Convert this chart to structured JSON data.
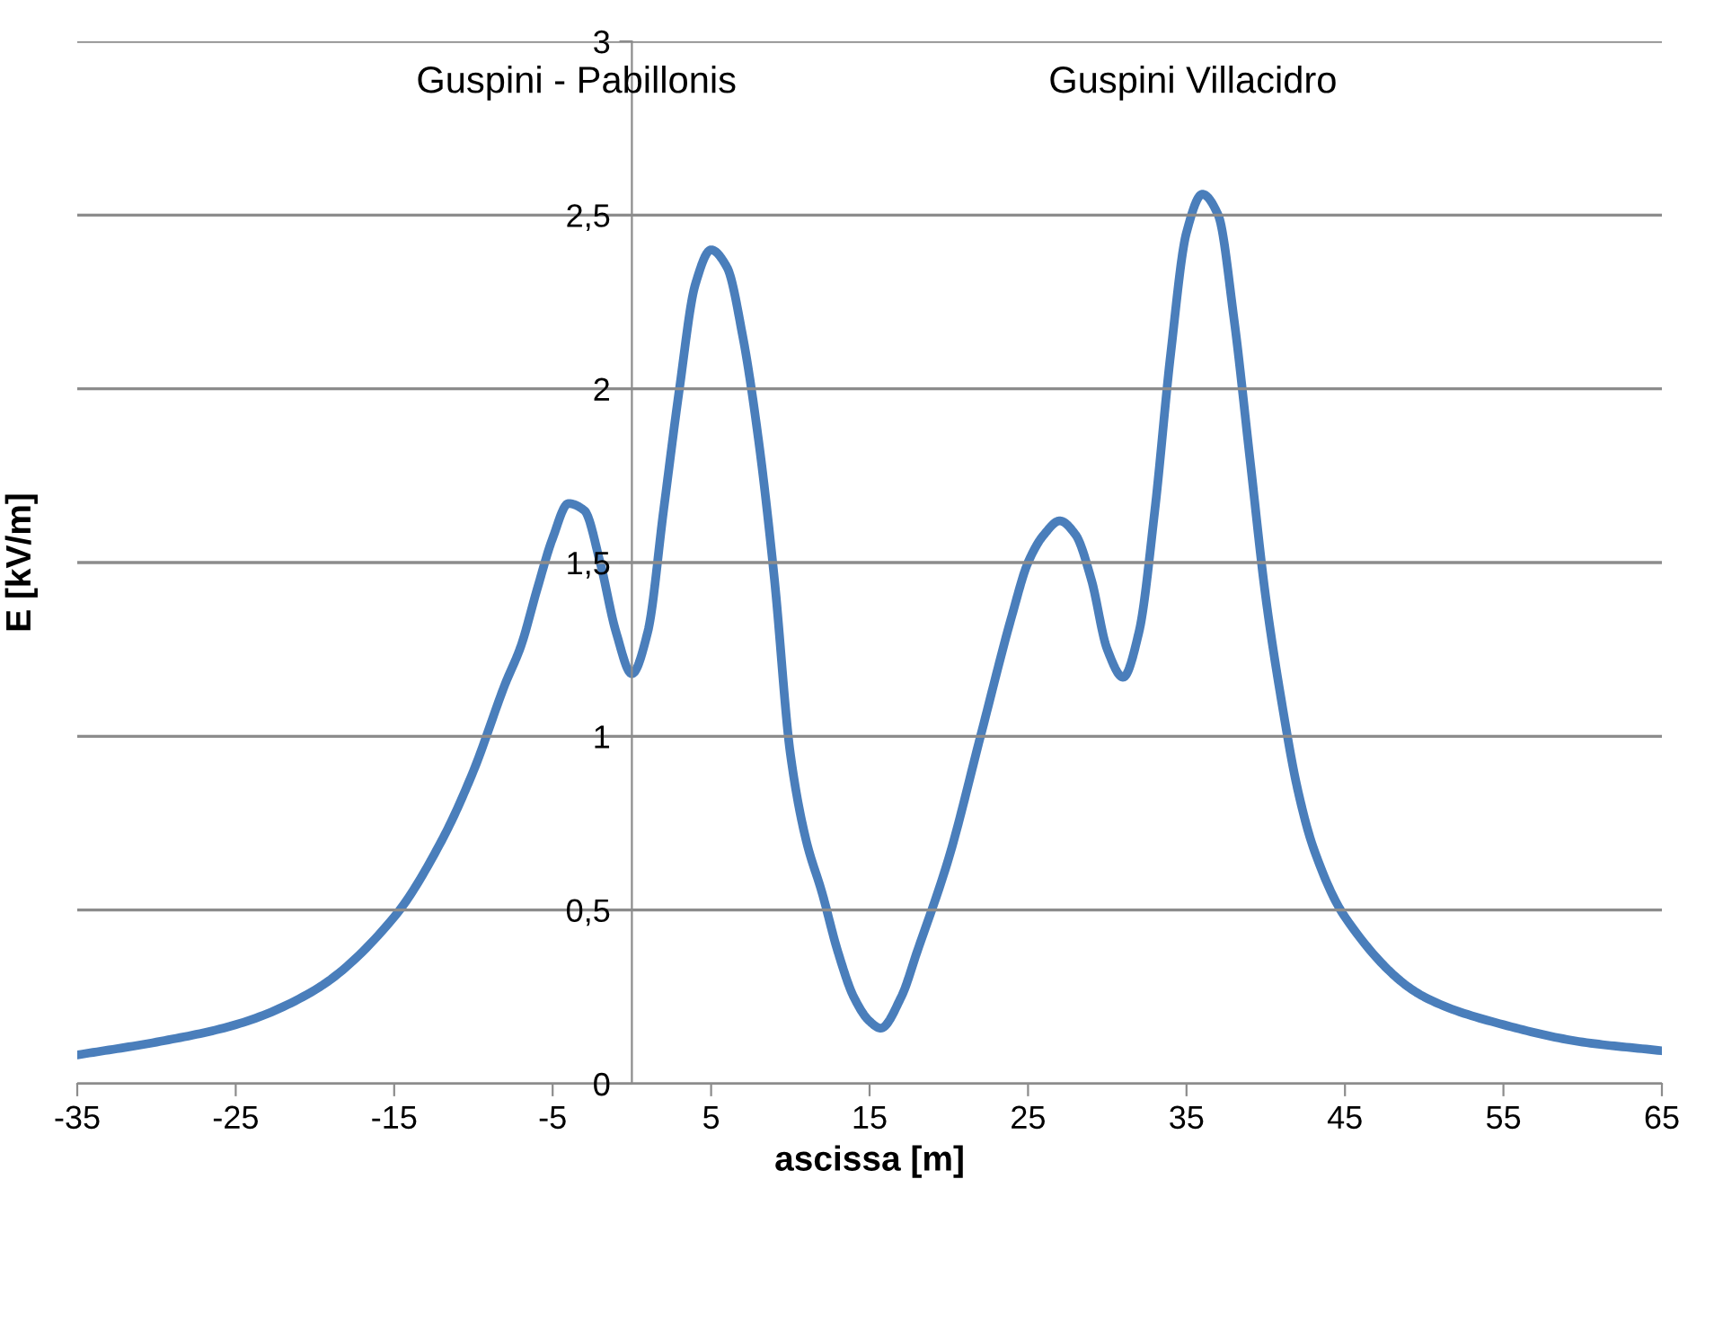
{
  "chart_data": {
    "type": "line",
    "xlabel": "ascissa [m]",
    "ylabel": "E [kV/m]",
    "xlim": [
      -35,
      65
    ],
    "xticks": [
      -35,
      -25,
      -15,
      -5,
      5,
      15,
      25,
      35,
      45,
      55,
      65
    ],
    "ylim": [
      0,
      3
    ],
    "yticks": [
      0,
      {
        "value": 0.5,
        "label": "0,5"
      },
      1,
      {
        "value": 1.5,
        "label": "1,5"
      },
      2,
      {
        "value": 2.5,
        "label": "2,5"
      },
      3
    ],
    "grid": "y",
    "marker": "none",
    "line_style": "solid",
    "annotations": [
      "Guspini - Pabillonis",
      "Guspini Villacidro"
    ],
    "series": [
      {
        "color": "#4a7ebb",
        "x": [
          -35,
          -30,
          -25,
          -20,
          -15,
          -12,
          -10,
          -8,
          -7,
          -6,
          -5,
          -4,
          -3,
          -2,
          -1,
          0,
          1,
          2,
          3,
          4,
          5,
          6,
          7,
          8,
          9,
          10,
          11,
          12,
          13,
          14,
          15,
          15.7,
          17,
          18,
          20,
          22,
          24,
          25,
          26,
          27,
          28,
          29,
          30,
          31,
          32,
          33,
          34,
          35,
          36,
          37,
          38,
          39,
          40,
          41,
          42,
          43,
          45,
          50,
          55,
          60,
          65
        ],
        "values": [
          0.083,
          0.12,
          0.17,
          0.27,
          0.48,
          0.7,
          0.9,
          1.15,
          1.26,
          1.42,
          1.57,
          1.67,
          1.65,
          1.5,
          1.3,
          1.18,
          1.3,
          1.65,
          2.0,
          2.3,
          2.4,
          2.35,
          2.15,
          1.85,
          1.45,
          0.95,
          0.7,
          0.55,
          0.38,
          0.25,
          0.18,
          0.16,
          0.25,
          0.38,
          0.65,
          1.0,
          1.35,
          1.5,
          1.58,
          1.62,
          1.58,
          1.45,
          1.25,
          1.17,
          1.3,
          1.65,
          2.1,
          2.45,
          2.56,
          2.5,
          2.2,
          1.8,
          1.4,
          1.1,
          0.85,
          0.68,
          0.48,
          0.25,
          0.17,
          0.12,
          0.095
        ]
      }
    ]
  }
}
